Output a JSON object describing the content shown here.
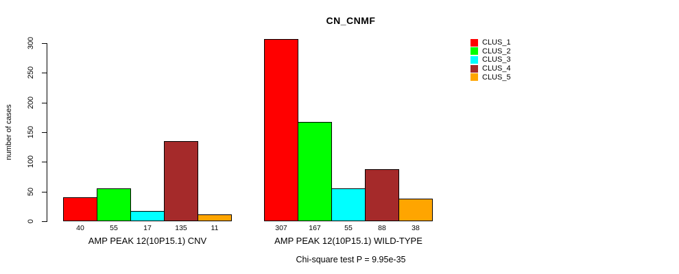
{
  "title": "CN_CNMF",
  "ylabel": "number of cases",
  "footer": "Chi-square test P = 9.95e-35",
  "chart_data": {
    "type": "bar",
    "title": "CN_CNMF",
    "xlabel": "",
    "ylabel": "number of cases",
    "ylim": [
      0,
      300
    ],
    "yticks": [
      0,
      50,
      100,
      150,
      200,
      250,
      300
    ],
    "grid": false,
    "bar_value_labels": true,
    "legend_position": "top-right",
    "categories": [
      "AMP PEAK 12(10P15.1) CNV",
      "AMP PEAK 12(10P15.1) WILD-TYPE"
    ],
    "series": [
      {
        "name": "CLUS_1",
        "color": "#FF0000",
        "values": [
          40,
          307
        ]
      },
      {
        "name": "CLUS_2",
        "color": "#00FF00",
        "values": [
          55,
          167
        ]
      },
      {
        "name": "CLUS_3",
        "color": "#00FFFF",
        "values": [
          17,
          55
        ]
      },
      {
        "name": "CLUS_4",
        "color": "#A52A2A",
        "values": [
          135,
          88
        ]
      },
      {
        "name": "CLUS_5",
        "color": "#FFA500",
        "values": [
          11,
          38
        ]
      }
    ],
    "annotation": "Chi-square test P = 9.95e-35"
  }
}
